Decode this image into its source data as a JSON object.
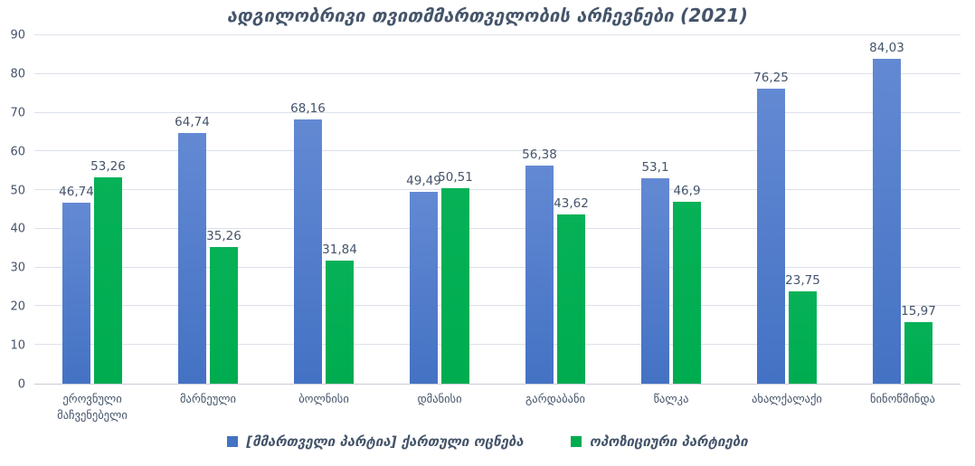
{
  "title": "ადგილობრივი თვითმმართველობის არჩევნები (2021)",
  "colors": {
    "text": "#44546A",
    "gridline": "#dce1ea",
    "axis_line": "#c8cdd6",
    "series1": "#4472C4",
    "series2": "#00AC50"
  },
  "chart_data": {
    "type": "bar",
    "title": "ადგილობრივი თვითმმართველობის არჩევნები (2021)",
    "categories": [
      "ეროვნული მაჩვენებელი",
      "მარნეული",
      "ბოლნისი",
      "დმანისი",
      "გარდაბანი",
      "წალკა",
      "ახალქალაქი",
      "ნინოწმინდა"
    ],
    "series": [
      {
        "name": "[მმართველი პარტია] ქართული ოცნება",
        "color": "#4472C4",
        "color_light": "#6389D3",
        "values": [
          46.74,
          64.74,
          68.16,
          49.49,
          56.38,
          53.1,
          76.25,
          84.03
        ],
        "labels": [
          "46,74",
          "64,74",
          "68,16",
          "49,49",
          "56,38",
          "53,1",
          "76,25",
          "84,03"
        ]
      },
      {
        "name": "ოპოზიციური პარტიები",
        "color": "#00AC50",
        "color_light": "#06B157",
        "values": [
          53.26,
          35.26,
          31.84,
          50.51,
          43.62,
          46.9,
          23.75,
          15.97
        ],
        "labels": [
          "53,26",
          "35,26",
          "31,84",
          "50,51",
          "43,62",
          "46,9",
          "23,75",
          "15,97"
        ]
      }
    ],
    "xlabel": "",
    "ylabel": "",
    "ylim": [
      0,
      90
    ],
    "ytick_step": 10,
    "yticks": [
      "0",
      "10",
      "20",
      "30",
      "40",
      "50",
      "60",
      "70",
      "80",
      "90"
    ],
    "grid": true,
    "legend_position": "bottom"
  }
}
